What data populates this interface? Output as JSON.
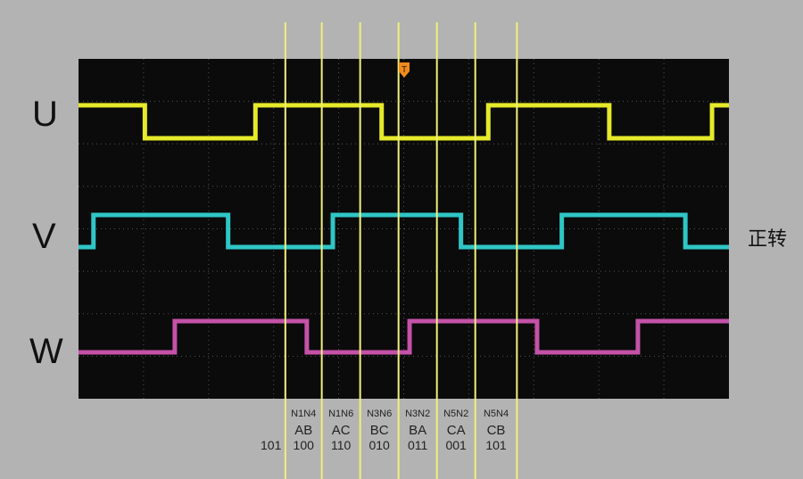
{
  "chart_data": {
    "type": "line",
    "title": "",
    "xlabel": "",
    "ylabel": "",
    "x_range_divisions": [
      0,
      10
    ],
    "grid": true,
    "series": [
      {
        "name": "U",
        "color": "#e6ea2a",
        "initial": 1,
        "transitions": [
          1.02,
          2.72,
          4.66,
          6.3,
          8.16,
          9.74
        ]
      },
      {
        "name": "V",
        "color": "#2fc6c6",
        "initial": 0,
        "transitions": [
          0.23,
          2.3,
          3.91,
          5.88,
          7.43,
          9.33
        ]
      },
      {
        "name": "W",
        "color": "#c452a8",
        "initial": 0,
        "transitions": [
          1.48,
          3.51,
          5.09,
          7.05,
          8.6
        ]
      }
    ],
    "cursors": [
      3.18,
      3.74,
      4.33,
      4.92,
      5.51,
      6.1,
      6.74
    ],
    "trigger_marker": "T",
    "annotation": "正转",
    "start_code": "101",
    "intervals": [
      {
        "phase_pair": "N1N4",
        "conducting": "AB",
        "code": "100"
      },
      {
        "phase_pair": "N1N6",
        "conducting": "AC",
        "code": "110"
      },
      {
        "phase_pair": "N3N6",
        "conducting": "BC",
        "code": "010"
      },
      {
        "phase_pair": "N3N2",
        "conducting": "BA",
        "code": "011"
      },
      {
        "phase_pair": "N5N2",
        "conducting": "CA",
        "code": "001"
      },
      {
        "phase_pair": "N5N4",
        "conducting": "CB",
        "code": "101"
      }
    ]
  }
}
